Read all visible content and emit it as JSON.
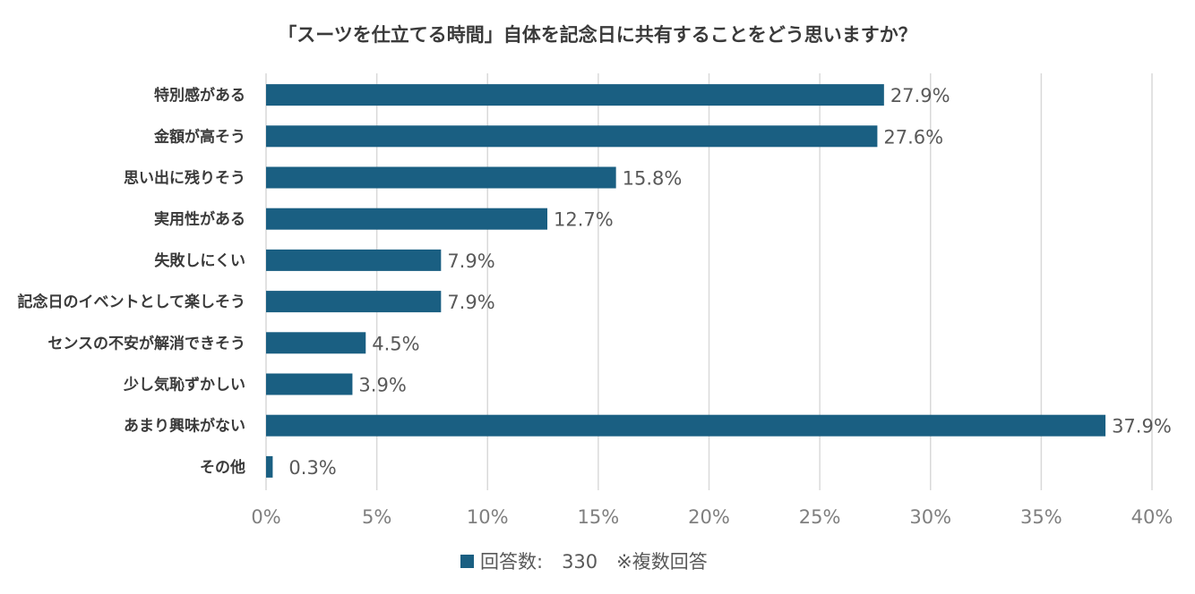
{
  "chart_data": {
    "type": "bar",
    "orientation": "horizontal",
    "title": "「スーツを仕立てる時間」自体を記念日に共有することをどう思いますか？",
    "categories": [
      "特別感がある",
      "金額が高そう",
      "思い出に残りそう",
      "実用性がある",
      "失敗しにくい",
      "記念日のイベントとして楽しそう",
      "センスの不安が解消できそう",
      "少し気恥ずかしい",
      "あまり興味がない",
      "その他"
    ],
    "values": [
      27.9,
      27.6,
      15.8,
      12.7,
      7.9,
      7.9,
      4.5,
      3.9,
      37.9,
      0.3
    ],
    "value_labels": [
      "27.9%",
      "27.6%",
      "15.8%",
      "12.7%",
      "7.9%",
      "7.9%",
      "4.5%",
      "3.9%",
      "37.9%",
      "0.3%"
    ],
    "xlim": [
      0,
      40
    ],
    "x_ticks": [
      0,
      5,
      10,
      15,
      20,
      25,
      30,
      35,
      40
    ],
    "x_tick_labels": [
      "0%",
      "5%",
      "10%",
      "15%",
      "20%",
      "25%",
      "30%",
      "35%",
      "40%"
    ],
    "grid": "vertical",
    "bar_color": "#1a5f82",
    "legend": {
      "position": "bottom",
      "label": "回答数:　330　※複数回答"
    }
  }
}
